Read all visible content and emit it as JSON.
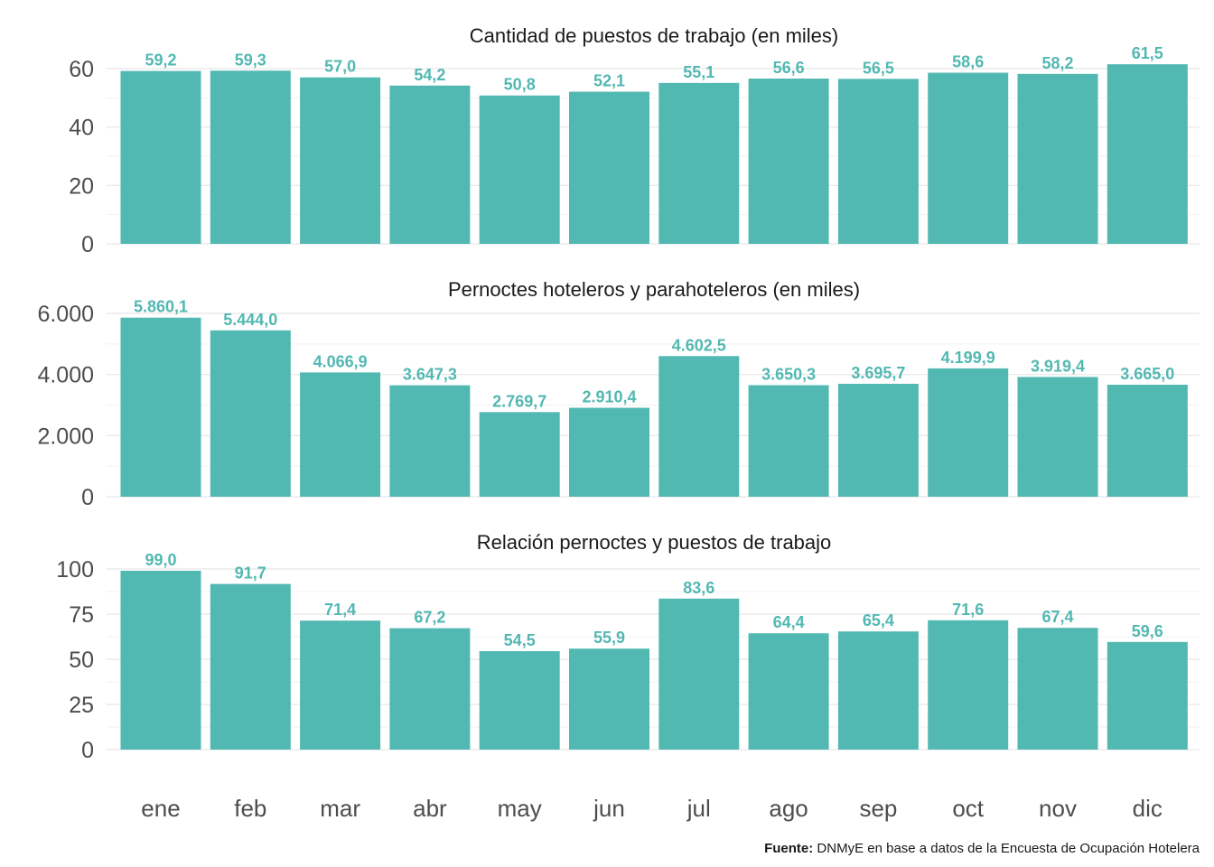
{
  "colors": {
    "bar": "#52b8b2",
    "label": "#52b8b2",
    "grid_major": "#e6e6e6",
    "grid_minor": "#f2f2f2"
  },
  "source": {
    "label": "Fuente:",
    "text": " DNMyE en base a datos de la Encuesta de Ocupación Hotelera"
  },
  "chart_data": [
    {
      "type": "bar",
      "title": "Cantidad de puestos de trabajo (en miles)",
      "categories": [
        "ene",
        "feb",
        "mar",
        "abr",
        "may",
        "jun",
        "jul",
        "ago",
        "sep",
        "oct",
        "nov",
        "dic"
      ],
      "values": [
        59.2,
        59.3,
        57.0,
        54.2,
        50.8,
        52.1,
        55.1,
        56.6,
        56.5,
        58.6,
        58.2,
        61.5
      ],
      "value_labels": [
        "59,2",
        "59,3",
        "57,0",
        "54,2",
        "50,8",
        "52,1",
        "55,1",
        "56,6",
        "56,5",
        "58,6",
        "58,2",
        "61,5"
      ],
      "yticks": [
        0,
        20,
        40,
        60
      ],
      "ytick_labels": [
        "0",
        "20",
        "40",
        "60"
      ],
      "ylim": [
        0,
        61.5
      ],
      "grid": true
    },
    {
      "type": "bar",
      "title": "Pernoctes hoteleros y parahoteleros (en miles)",
      "categories": [
        "ene",
        "feb",
        "mar",
        "abr",
        "may",
        "jun",
        "jul",
        "ago",
        "sep",
        "oct",
        "nov",
        "dic"
      ],
      "values": [
        5860.1,
        5444.0,
        4066.9,
        3647.3,
        2769.7,
        2910.4,
        4602.5,
        3650.3,
        3695.7,
        4199.9,
        3919.4,
        3665.0
      ],
      "value_labels": [
        "5.860,1",
        "5.444,0",
        "4.066,9",
        "3.647,3",
        "2.769,7",
        "2.910,4",
        "4.602,5",
        "3.650,3",
        "3.695,7",
        "4.199,9",
        "3.919,4",
        "3.665,0"
      ],
      "yticks": [
        0,
        2000,
        4000,
        6000
      ],
      "ytick_labels": [
        "0",
        "2.000",
        "4.000",
        "6.000"
      ],
      "ylim": [
        0,
        6000
      ],
      "grid": true
    },
    {
      "type": "bar",
      "title": "Relación pernoctes y puestos de trabajo",
      "categories": [
        "ene",
        "feb",
        "mar",
        "abr",
        "may",
        "jun",
        "jul",
        "ago",
        "sep",
        "oct",
        "nov",
        "dic"
      ],
      "values": [
        99.0,
        91.7,
        71.4,
        67.2,
        54.5,
        55.9,
        83.6,
        64.4,
        65.4,
        71.6,
        67.4,
        59.6
      ],
      "value_labels": [
        "99,0",
        "91,7",
        "71,4",
        "67,2",
        "54,5",
        "55,9",
        "83,6",
        "64,4",
        "65,4",
        "71,6",
        "67,4",
        "59,6"
      ],
      "yticks": [
        0,
        25,
        50,
        75,
        100
      ],
      "ytick_labels": [
        "0",
        "25",
        "50",
        "75",
        "100"
      ],
      "ylim": [
        0,
        100
      ],
      "grid": true
    }
  ]
}
